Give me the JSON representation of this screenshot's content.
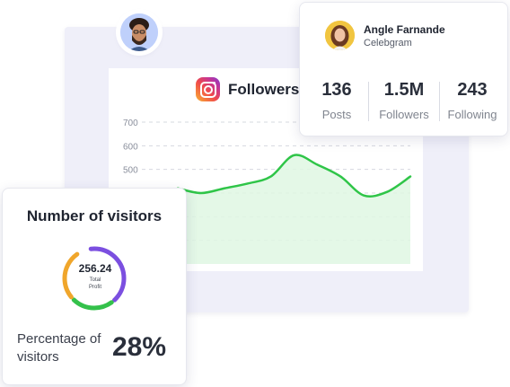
{
  "profile": {
    "name": "Angle Farnande",
    "handle": "Celebgram",
    "stats": [
      {
        "value": "136",
        "label": "Posts"
      },
      {
        "value": "1.5M",
        "label": "Followers"
      },
      {
        "value": "243",
        "label": "Following"
      }
    ]
  },
  "followers_panel": {
    "title": "Followers",
    "icon": "instagram-icon"
  },
  "chart_data": {
    "type": "area",
    "title": "Followers",
    "y_ticks": [
      "700",
      "600",
      "500"
    ],
    "x": [
      0,
      1,
      2,
      3,
      4,
      5,
      6,
      7,
      8,
      9,
      10
    ],
    "y": [
      420,
      400,
      420,
      440,
      470,
      560,
      520,
      470,
      390,
      405,
      470
    ],
    "colors": {
      "line": "#2fc548",
      "fill": "#dff7e3"
    }
  },
  "visitors": {
    "title": "Number of visitors",
    "total": "256.24",
    "total_label": "Total",
    "total_label_2": "Profit",
    "percentage_label": "Percentage of visitors",
    "percentage_value": "28%",
    "donut_segments": [
      {
        "name": "purple",
        "fraction": 0.42,
        "color": "#7b4fe0"
      },
      {
        "name": "green",
        "fraction": 0.24,
        "color": "#34c14b"
      },
      {
        "name": "orange",
        "fraction": 0.28,
        "color": "#f0a62b"
      }
    ]
  }
}
